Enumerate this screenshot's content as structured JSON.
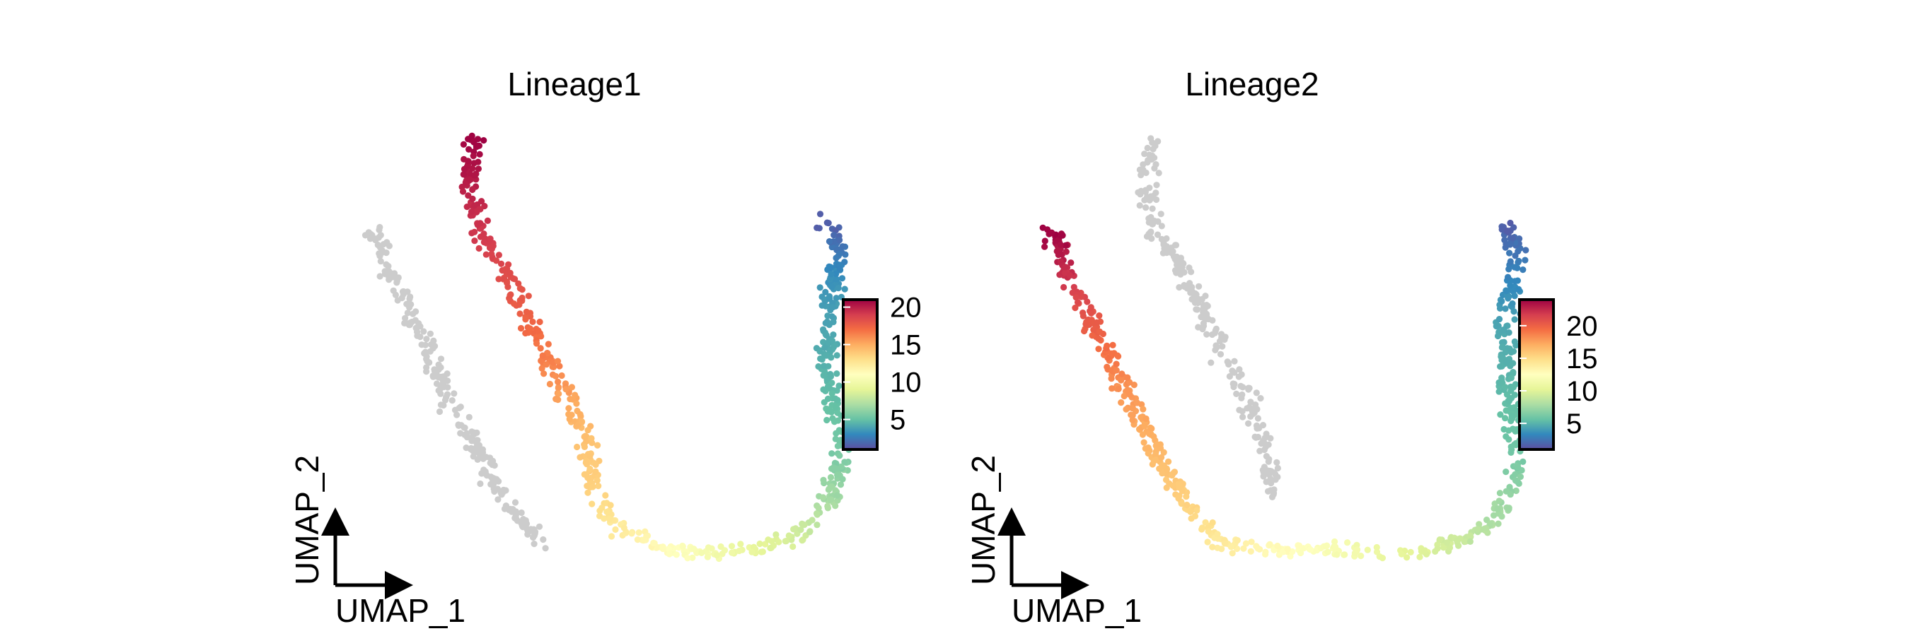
{
  "chart_data": [
    {
      "type": "scatter",
      "title": "Lineage1",
      "xlabel": "UMAP_1",
      "ylabel": "UMAP_2",
      "colorbar": {
        "range": [
          1,
          21
        ],
        "ticks": [
          5,
          10,
          15,
          20
        ],
        "palette": "Spectral (reversed)"
      },
      "na_color": "#cccccc",
      "grid": false,
      "legend_position": "right",
      "colored_path": [
        [
          -1.5,
          9.8,
          21
        ],
        [
          -1.6,
          8.6,
          20
        ],
        [
          -1.4,
          7.6,
          19.2
        ],
        [
          -1.0,
          6.8,
          18.5
        ],
        [
          -0.7,
          6.0,
          17.8
        ],
        [
          -0.4,
          5.2,
          17
        ],
        [
          -0.1,
          4.4,
          16
        ],
        [
          0.2,
          3.6,
          15
        ],
        [
          0.5,
          2.6,
          14
        ],
        [
          0.6,
          1.6,
          13.5
        ],
        [
          0.9,
          0.9,
          12.5
        ],
        [
          1.5,
          0.5,
          11.5
        ],
        [
          2.3,
          0.3,
          10.5
        ],
        [
          3.1,
          0.3,
          9.5
        ],
        [
          3.9,
          0.6,
          8.5
        ],
        [
          4.4,
          1.0,
          7.5
        ],
        [
          4.7,
          1.8,
          6.5
        ],
        [
          4.8,
          2.6,
          5.5
        ],
        [
          4.7,
          3.6,
          5
        ],
        [
          4.6,
          4.5,
          4.5
        ],
        [
          4.6,
          5.4,
          4
        ],
        [
          4.7,
          6.3,
          3.5
        ],
        [
          4.8,
          7.2,
          2.5
        ],
        [
          4.6,
          7.8,
          1.5
        ]
      ],
      "gray_path": [
        [
          -3.2,
          7.6
        ],
        [
          -3.0,
          6.8
        ],
        [
          -2.7,
          6.0
        ],
        [
          -2.3,
          5.0
        ],
        [
          -2.0,
          4.0
        ],
        [
          -1.6,
          3.0
        ],
        [
          -1.2,
          2.0
        ],
        [
          -0.7,
          1.0
        ],
        [
          -0.3,
          0.5
        ]
      ]
    },
    {
      "type": "scatter",
      "title": "Lineage2",
      "xlabel": "UMAP_1",
      "ylabel": "UMAP_2",
      "colorbar": {
        "range": [
          1,
          24
        ],
        "ticks": [
          5,
          10,
          15,
          20
        ],
        "palette": "Spectral (reversed)"
      },
      "na_color": "#cccccc",
      "grid": false,
      "legend_position": "right",
      "colored_path": [
        [
          -3.2,
          7.6,
          24
        ],
        [
          -3.0,
          6.8,
          22.5
        ],
        [
          -2.7,
          6.0,
          21
        ],
        [
          -2.3,
          5.0,
          19.5
        ],
        [
          -2.0,
          4.0,
          18
        ],
        [
          -1.6,
          3.0,
          17
        ],
        [
          -1.2,
          2.0,
          16
        ],
        [
          -0.7,
          1.0,
          15
        ],
        [
          -0.3,
          0.5,
          14
        ],
        [
          0.5,
          0.4,
          13
        ],
        [
          1.5,
          0.4,
          12
        ],
        [
          2.3,
          0.3,
          11
        ],
        [
          3.1,
          0.3,
          10
        ],
        [
          3.9,
          0.6,
          9
        ],
        [
          4.4,
          1.0,
          8
        ],
        [
          4.7,
          1.8,
          7
        ],
        [
          4.8,
          2.6,
          6
        ],
        [
          4.7,
          3.6,
          5.5
        ],
        [
          4.6,
          4.5,
          5
        ],
        [
          4.6,
          5.4,
          4.5
        ],
        [
          4.7,
          6.3,
          3.5
        ],
        [
          4.8,
          7.2,
          2.5
        ],
        [
          4.6,
          7.8,
          1.5
        ]
      ],
      "gray_path": [
        [
          -1.5,
          9.8
        ],
        [
          -1.6,
          8.6
        ],
        [
          -1.4,
          7.6
        ],
        [
          -1.0,
          6.8
        ],
        [
          -0.7,
          6.0
        ],
        [
          -0.4,
          5.2
        ],
        [
          -0.1,
          4.4
        ],
        [
          0.2,
          3.6
        ],
        [
          0.5,
          2.6
        ],
        [
          0.6,
          1.6
        ]
      ]
    }
  ]
}
